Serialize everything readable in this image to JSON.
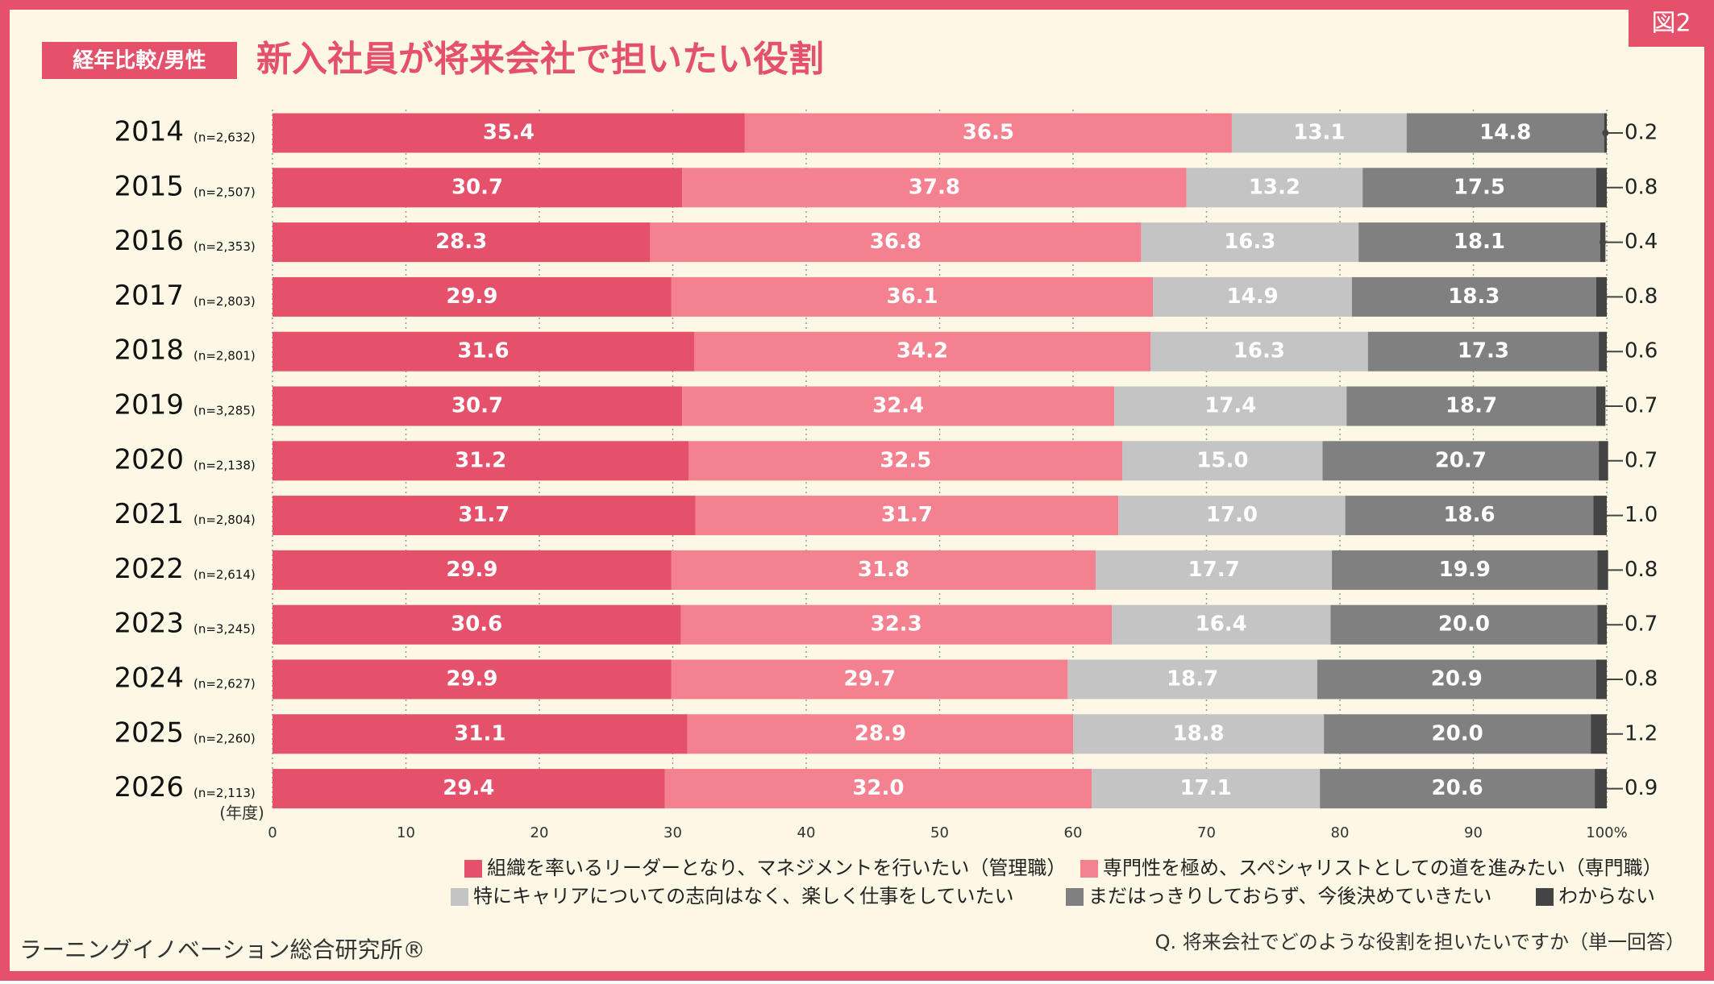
{
  "header": {
    "tag": "経年比較/男性",
    "figure": "図2"
  },
  "chart_data": {
    "type": "stacked-bar-horizontal",
    "title": "新入社員が将来会社で担いたい役割",
    "categories": [
      "2014",
      "2015",
      "2016",
      "2017",
      "2018",
      "2019",
      "2020",
      "2021",
      "2022",
      "2023",
      "2024",
      "2025",
      "2026"
    ],
    "sample_sizes": [
      "(n=2,632)",
      "(n=2,507)",
      "(n=2,353)",
      "(n=2,803)",
      "(n=2,801)",
      "(n=3,285)",
      "(n=2,138)",
      "(n=2,804)",
      "(n=2,614)",
      "(n=3,245)",
      "(n=2,627)",
      "(n=2,260)",
      "(n=2,113)"
    ],
    "y_label": "(年度)",
    "xlim": [
      0,
      100
    ],
    "xticks": [
      0,
      10,
      20,
      30,
      40,
      50,
      60,
      70,
      80,
      90,
      {
        "value": 100,
        "label": "100%"
      }
    ],
    "grid": true,
    "series": [
      {
        "name": "組織を率いるリーダーとなり、マネジメントを行いたい（管理職）",
        "color": "#e5506a",
        "values": [
          35.4,
          30.7,
          28.3,
          29.9,
          31.6,
          30.7,
          31.2,
          31.7,
          29.9,
          30.6,
          29.9,
          31.1,
          29.4
        ],
        "value_labels": [
          "35.4",
          "30.7",
          "28.3",
          "29.9",
          "31.6",
          "30.7",
          "31.2",
          "31.7",
          "29.9",
          "30.6",
          "29.9",
          "31.1",
          "29.4"
        ]
      },
      {
        "name": "専門性を極め、スペシャリストとしての道を進みたい（専門職）",
        "color": "#f3818f",
        "values": [
          36.5,
          37.8,
          36.8,
          36.1,
          34.2,
          32.4,
          32.5,
          31.7,
          31.8,
          32.3,
          29.7,
          28.9,
          32.0
        ],
        "value_labels": [
          "36.5",
          "37.8",
          "36.8",
          "36.1",
          "34.2",
          "32.4",
          "32.5",
          "31.7",
          "31.8",
          "32.3",
          "29.7",
          "28.9",
          "32.0"
        ]
      },
      {
        "name": "特にキャリアについての志向はなく、楽しく仕事をしていたい",
        "color": "#c4c4c4",
        "values": [
          13.1,
          13.2,
          16.3,
          14.9,
          16.3,
          17.4,
          15.0,
          17.0,
          17.7,
          16.4,
          18.7,
          18.8,
          17.1
        ],
        "value_labels": [
          "13.1",
          "13.2",
          "16.3",
          "14.9",
          "16.3",
          "17.4",
          "15.0",
          "17.0",
          "17.7",
          "16.4",
          "18.7",
          "18.8",
          "17.1"
        ]
      },
      {
        "name": "まだはっきりしておらず、今後決めていきたい",
        "color": "#808080",
        "values": [
          14.8,
          17.5,
          18.1,
          18.3,
          17.3,
          18.7,
          20.7,
          18.6,
          19.9,
          20.0,
          20.9,
          20.0,
          20.6
        ],
        "value_labels": [
          "14.8",
          "17.5",
          "18.1",
          "18.3",
          "17.3",
          "18.7",
          "20.7",
          "18.6",
          "19.9",
          "20.0",
          "20.9",
          "20.0",
          "20.6"
        ]
      },
      {
        "name": "わからない",
        "color": "#444444",
        "values": [
          0.2,
          0.8,
          0.4,
          0.8,
          0.6,
          0.7,
          0.7,
          1.0,
          0.8,
          0.7,
          0.8,
          1.2,
          0.9
        ],
        "value_labels": [
          "0.2",
          "0.8",
          "0.4",
          "0.8",
          "0.6",
          "0.7",
          "0.7",
          "1.0",
          "0.8",
          "0.7",
          "0.8",
          "1.2",
          "0.9"
        ]
      }
    ]
  },
  "footer": {
    "source": "ラーニングイノベーション総合研究所®",
    "question": "Q. 将来会社でどのような役割を担いたいですか（単一回答）"
  }
}
